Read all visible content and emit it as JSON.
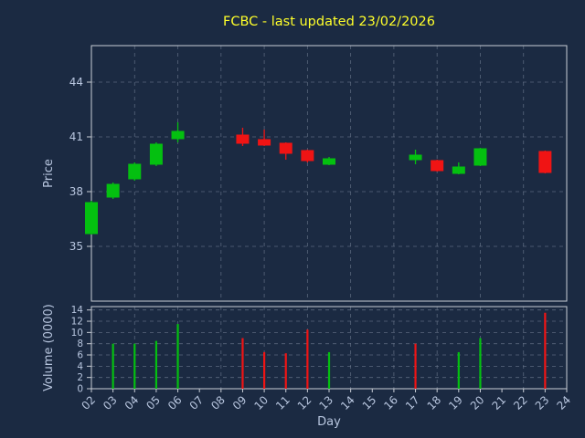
{
  "title": "FCBC - last updated 23/02/2026",
  "axes": {
    "price_label": "Price",
    "volume_label": "Volume (0000)",
    "x_label": "Day",
    "price_ticks": [
      35,
      38,
      41,
      44
    ],
    "price_range": [
      32,
      46
    ],
    "volume_ticks": [
      0,
      2,
      4,
      6,
      8,
      10,
      12,
      14
    ],
    "volume_range": [
      0,
      14.6
    ],
    "x_tick_labels": [
      "02",
      "03",
      "04",
      "05",
      "06",
      "07",
      "08",
      "09",
      "10",
      "11",
      "12",
      "13",
      "14",
      "15",
      "16",
      "17",
      "18",
      "19",
      "20",
      "21",
      "22",
      "23",
      "24"
    ],
    "x_grid_days": [
      2,
      4,
      6,
      8,
      10,
      12,
      14,
      16,
      18,
      20,
      22,
      24
    ],
    "grid_style": "dashed"
  },
  "colors": {
    "background": "#1b2a42",
    "up": "#04c010",
    "down": "#f01414",
    "grid": "#6e7b90",
    "spine": "#c8cdd5",
    "tick_label": "#b8c6df",
    "title": "#ffff2a"
  },
  "chart_data": {
    "type": "candlestick",
    "title": "FCBC - last updated 23/02/2026",
    "xlabel": "Day",
    "ylabel_top": "Price",
    "ylabel_bottom": "Volume (0000)",
    "x_range_days": [
      2,
      24
    ],
    "price_ylim": [
      32,
      46
    ],
    "volume_ylim": [
      0,
      14.6
    ],
    "candles": [
      {
        "day": "02",
        "open": 35.7,
        "high": 37.5,
        "low": 35.65,
        "close": 37.4,
        "volume_0000": 0,
        "volume_color": "none"
      },
      {
        "day": "03",
        "open": 37.7,
        "high": 38.5,
        "low": 37.6,
        "close": 38.4,
        "volume_0000": 8.0,
        "volume_color": "up"
      },
      {
        "day": "04",
        "open": 38.7,
        "high": 39.6,
        "low": 38.6,
        "close": 39.5,
        "volume_0000": 8.0,
        "volume_color": "up"
      },
      {
        "day": "05",
        "open": 39.5,
        "high": 40.7,
        "low": 39.4,
        "close": 40.6,
        "volume_0000": 8.5,
        "volume_color": "up"
      },
      {
        "day": "06",
        "open": 40.9,
        "high": 41.8,
        "low": 40.7,
        "close": 41.3,
        "volume_0000": 11.5,
        "volume_color": "up"
      },
      {
        "day": "09",
        "open": 41.1,
        "high": 41.5,
        "low": 40.5,
        "close": 40.65,
        "volume_0000": 9.0,
        "volume_color": "down"
      },
      {
        "day": "10",
        "open": 40.85,
        "high": 41.4,
        "low": 40.5,
        "close": 40.55,
        "volume_0000": 6.5,
        "volume_color": "down"
      },
      {
        "day": "11",
        "open": 40.65,
        "high": 40.7,
        "low": 39.75,
        "close": 40.1,
        "volume_0000": 6.3,
        "volume_color": "down"
      },
      {
        "day": "12",
        "open": 40.25,
        "high": 40.3,
        "low": 39.6,
        "close": 39.7,
        "volume_0000": 10.5,
        "volume_color": "down"
      },
      {
        "day": "13",
        "open": 39.5,
        "high": 39.9,
        "low": 39.45,
        "close": 39.8,
        "volume_0000": 6.5,
        "volume_color": "up"
      },
      {
        "day": "17",
        "open": 39.75,
        "high": 40.3,
        "low": 39.5,
        "close": 40.0,
        "volume_0000": 8.0,
        "volume_color": "down"
      },
      {
        "day": "18",
        "open": 39.7,
        "high": 39.75,
        "low": 39.1,
        "close": 39.15,
        "volume_0000": 0,
        "volume_color": "none"
      },
      {
        "day": "19",
        "open": 39.0,
        "high": 39.6,
        "low": 38.95,
        "close": 39.35,
        "volume_0000": 6.5,
        "volume_color": "up"
      },
      {
        "day": "20",
        "open": 39.45,
        "high": 40.4,
        "low": 39.4,
        "close": 40.35,
        "volume_0000": 9.0,
        "volume_color": "up"
      },
      {
        "day": "23",
        "open": 40.2,
        "high": 40.25,
        "low": 39.0,
        "close": 39.05,
        "volume_0000": 13.5,
        "volume_color": "down"
      }
    ]
  }
}
